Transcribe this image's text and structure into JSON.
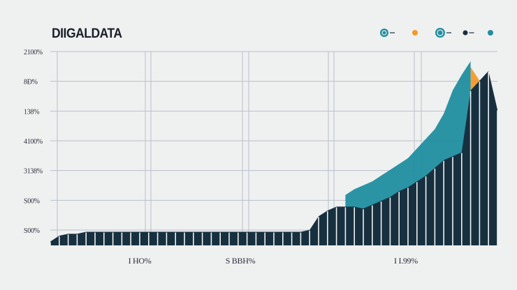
{
  "chart_data": {
    "type": "area",
    "title": "DIIGALDATA",
    "xlabel": "",
    "ylabel": "",
    "y_tick_labels": [
      "2100%",
      "8Ð%",
      "138%",
      "4100%",
      "3138%",
      "S00%",
      "S00%"
    ],
    "x_tick_labels": [
      "I HO%",
      "S BBH%",
      "I I.99%"
    ],
    "grid": true,
    "legend": "top-right",
    "ylim": [
      0,
      100
    ],
    "x": [
      0,
      2,
      4,
      6,
      8,
      10,
      12,
      14,
      16,
      18,
      20,
      22,
      24,
      26,
      28,
      30,
      32,
      34,
      36,
      38,
      40,
      42,
      44,
      46,
      48,
      50,
      52,
      54,
      56,
      58,
      60,
      62,
      64,
      66,
      68,
      70,
      72,
      74,
      76,
      78,
      80,
      82,
      84,
      86,
      88,
      90,
      92,
      94,
      96,
      98,
      100
    ],
    "series": [
      {
        "color": "#17303f",
        "values": [
          2,
          5,
          6,
          6,
          7,
          7,
          7,
          7,
          7,
          7,
          7,
          7,
          7,
          7,
          7,
          7,
          7,
          7,
          7,
          7,
          7,
          7,
          7,
          7,
          7,
          7,
          7,
          7,
          7,
          8,
          15,
          18,
          20,
          20,
          20,
          19,
          21,
          23,
          25,
          28,
          30,
          33,
          36,
          40,
          44,
          46,
          48,
          80,
          85,
          90,
          70
        ]
      },
      {
        "color": "#1f8ea0",
        "values": [
          null,
          null,
          null,
          null,
          null,
          null,
          null,
          null,
          null,
          null,
          null,
          null,
          null,
          null,
          null,
          null,
          null,
          null,
          null,
          null,
          null,
          null,
          null,
          null,
          null,
          null,
          null,
          null,
          null,
          null,
          null,
          null,
          null,
          26,
          29,
          31,
          33,
          36,
          39,
          42,
          45,
          50,
          55,
          60,
          68,
          80,
          88,
          95,
          null,
          null,
          null
        ]
      },
      {
        "color": "#f29a2b",
        "values": [
          null,
          null,
          null,
          null,
          null,
          null,
          null,
          null,
          null,
          null,
          null,
          null,
          null,
          null,
          null,
          null,
          null,
          null,
          null,
          null,
          null,
          null,
          null,
          null,
          null,
          null,
          null,
          null,
          null,
          null,
          null,
          null,
          null,
          null,
          null,
          null,
          null,
          null,
          null,
          null,
          null,
          null,
          null,
          null,
          null,
          null,
          null,
          92,
          85,
          70,
          5
        ]
      }
    ]
  },
  "legend_colors": [
    "#1f8ea0",
    "#f29a2b",
    "#1f8ea0",
    "#17303f",
    "#1f8ea0"
  ],
  "colors": {
    "navy": "#17303f",
    "teal": "#1f8ea0",
    "orange": "#f29a2b",
    "grid": "#b9bfcb",
    "background": "#eff0f0"
  }
}
